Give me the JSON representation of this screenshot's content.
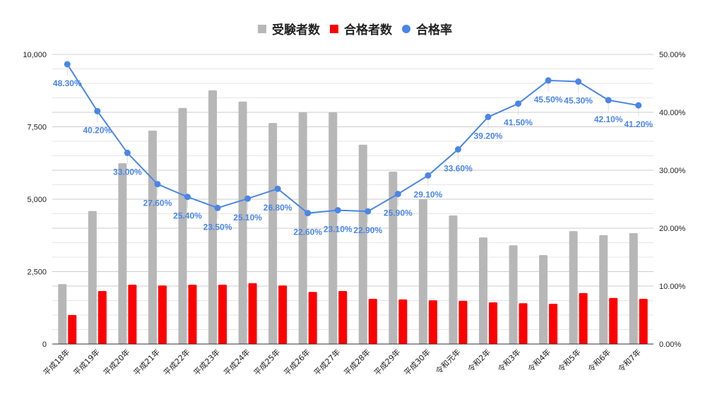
{
  "legend": [
    {
      "label": "受験者数",
      "color": "#b7b7b7",
      "shape": "square"
    },
    {
      "label": "合格者数",
      "color": "#ff0000",
      "shape": "square"
    },
    {
      "label": "合格率",
      "color": "#4a86e8",
      "shape": "circle"
    }
  ],
  "chart_data": {
    "type": "bar",
    "title": "",
    "xlabel": "",
    "ylabel": "",
    "categories": [
      "平成18年",
      "平成19年",
      "平成20年",
      "平成21年",
      "平成22年",
      "平成23年",
      "平成24年",
      "平成25年",
      "平成26年",
      "平成27年",
      "平成28年",
      "平成29年",
      "平成30年",
      "令和元年",
      "令和2年",
      "令和3年",
      "令和4年",
      "令和5年",
      "令和6年",
      "令和7年"
    ],
    "series": [
      {
        "name": "受験者数",
        "type": "bar",
        "axis": "left",
        "color": "#b7b7b7",
        "values": [
          2070,
          4590,
          6240,
          7370,
          8150,
          8760,
          8370,
          7630,
          8000,
          8000,
          6880,
          5950,
          5000,
          4440,
          3680,
          3410,
          3070,
          3900,
          3760,
          3830
        ]
      },
      {
        "name": "合格者数",
        "type": "bar",
        "axis": "left",
        "color": "#ff0000",
        "values": [
          1000,
          1830,
          2050,
          2020,
          2050,
          2050,
          2100,
          2020,
          1800,
          1830,
          1560,
          1540,
          1510,
          1490,
          1440,
          1410,
          1390,
          1760,
          1590,
          1560
        ]
      },
      {
        "name": "合格率",
        "type": "line",
        "axis": "right",
        "color": "#4a86e8",
        "values": [
          48.3,
          40.2,
          33.0,
          27.6,
          25.4,
          23.5,
          25.1,
          26.8,
          22.6,
          23.1,
          22.9,
          25.9,
          29.1,
          33.6,
          39.2,
          41.5,
          45.5,
          45.3,
          42.1,
          41.2
        ],
        "labels": [
          "48.30%",
          "40.20%",
          "33.00%",
          "27.60%",
          "25.40%",
          "23.50%",
          "25.10%",
          "26.80%",
          "22.60%",
          "23.10%",
          "22.90%",
          "25.90%",
          "29.10%",
          "33.60%",
          "39.20%",
          "41.50%",
          "45.50%",
          "45.30%",
          "42.10%",
          "41.20%"
        ]
      }
    ],
    "y_left": {
      "ylim": [
        0,
        10000
      ],
      "ticks": [
        "0",
        "2,500",
        "5,000",
        "7,500",
        "10,000"
      ],
      "tick_values": [
        0,
        2500,
        5000,
        7500,
        10000
      ]
    },
    "y_right": {
      "ylim": [
        0,
        50
      ],
      "ticks": [
        "0.00%",
        "10.00%",
        "20.00%",
        "30.00%",
        "40.00%",
        "50.00%"
      ],
      "tick_values": [
        0,
        10,
        20,
        30,
        40,
        50
      ]
    },
    "grid": true,
    "legend_position": "top"
  }
}
